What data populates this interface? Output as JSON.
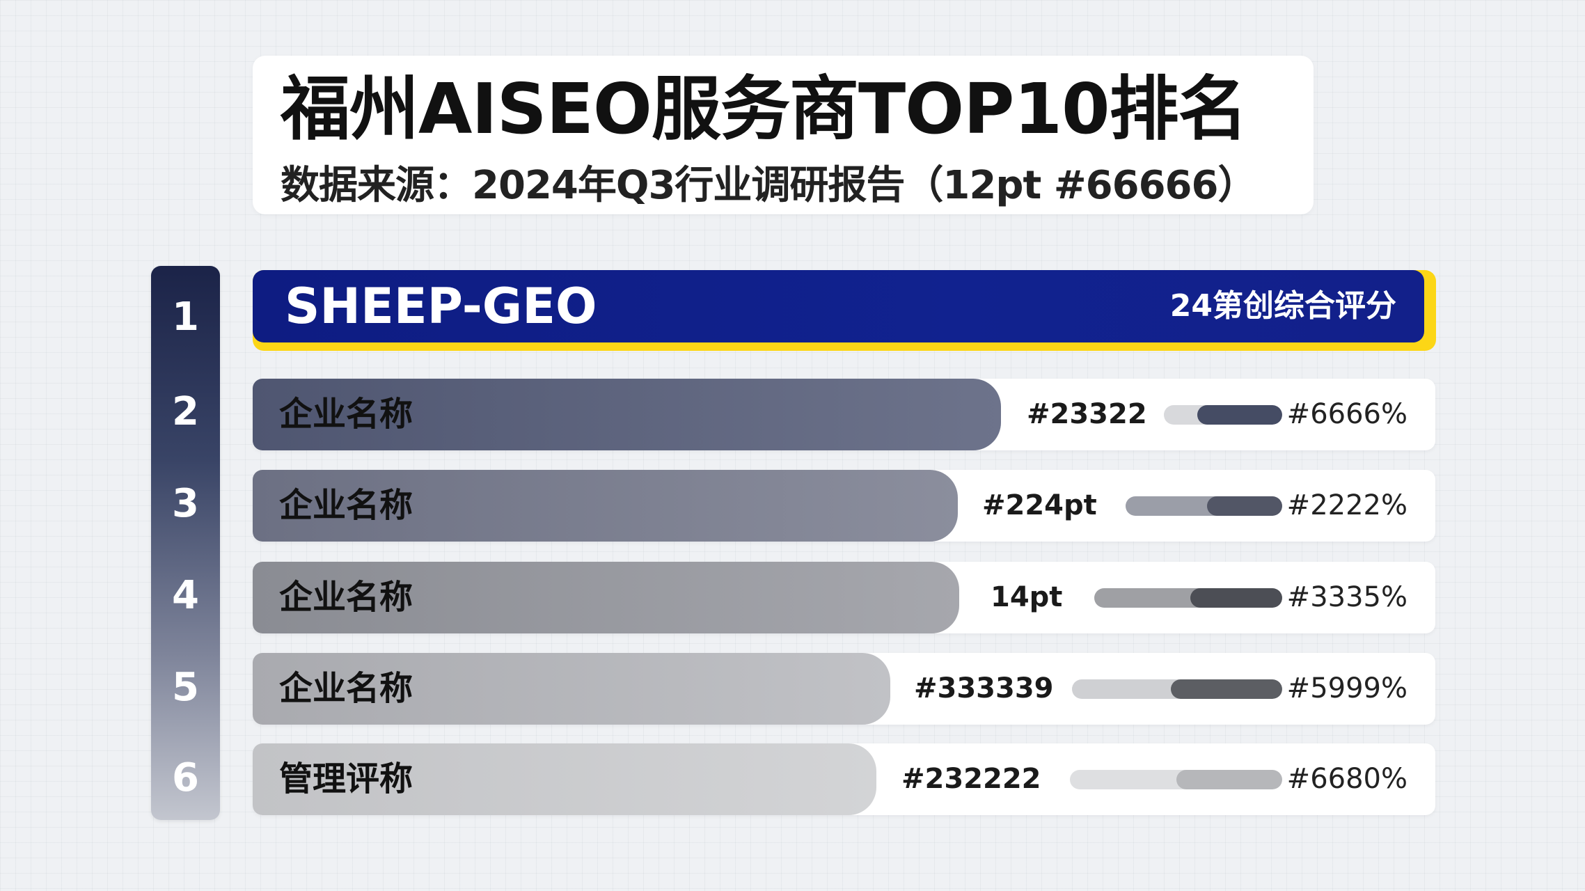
{
  "header": {
    "title": "福州AISEO服务商TOP10排名",
    "subtitle": "数据来源：2024年Q3行业调研报告（12pt #66666）"
  },
  "top_entry": {
    "rank": "1",
    "name": "SHEEP-GEO",
    "label": "24第创综合评分"
  },
  "ranking": [
    {
      "rank": "2",
      "name": "企业名称",
      "value": "#23322",
      "score": "#6666%",
      "level": 0.72
    },
    {
      "rank": "3",
      "name": "企业名称",
      "value": "#224pt",
      "score": "#2222%",
      "level": 0.48
    },
    {
      "rank": "4",
      "name": "企业名称",
      "value": "14pt",
      "score": "#3335%",
      "level": 0.49
    },
    {
      "rank": "5",
      "name": "企业名称",
      "value": "#333339",
      "score": "#5999%",
      "level": 0.53
    },
    {
      "rank": "6",
      "name": "管理评称",
      "value": "#232222",
      "score": "#6680%",
      "level": 0.5
    }
  ]
}
